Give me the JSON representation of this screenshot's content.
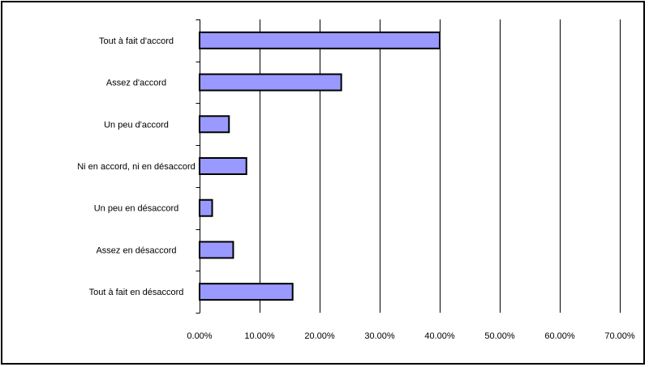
{
  "chart_data": {
    "type": "bar",
    "orientation": "horizontal",
    "categories": [
      "Tout à fait d'accord",
      "Assez d'accord",
      "Un peu d'accord",
      "Ni en accord, ni en désaccord",
      "Un peu en désaccord",
      "Assez en désaccord",
      "Tout à fait en désaccord"
    ],
    "values": [
      40.0,
      23.6,
      4.9,
      7.8,
      2.1,
      5.6,
      15.5
    ],
    "xlim": [
      0,
      70
    ],
    "xticks": [
      0,
      10,
      20,
      30,
      40,
      50,
      60,
      70
    ],
    "tick_labels": [
      "0.00%",
      "10.00%",
      "20.00%",
      "30.00%",
      "40.00%",
      "50.00%",
      "60.00%",
      "70.00%"
    ],
    "grid": true,
    "legend": "none",
    "bar_color": "#9999ff",
    "bar_edge_color": "#000000",
    "title": "",
    "xlabel": "",
    "ylabel": ""
  }
}
